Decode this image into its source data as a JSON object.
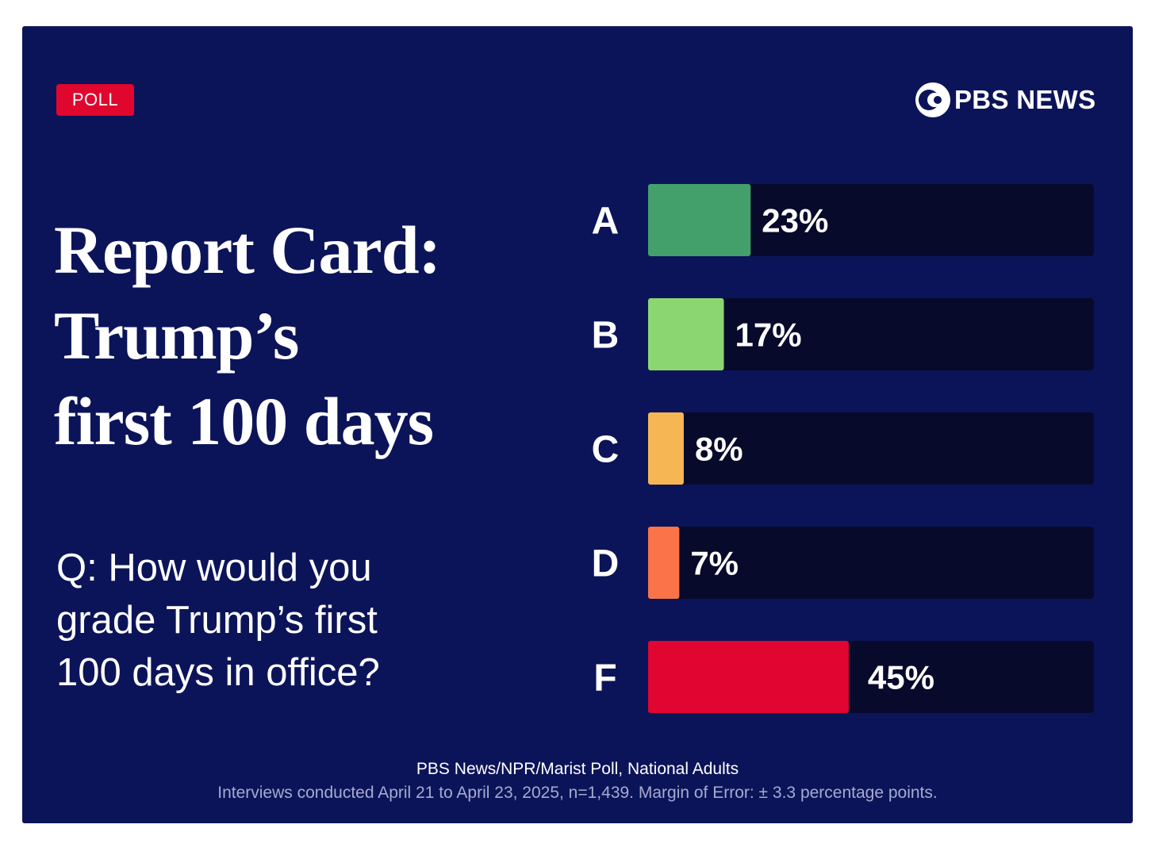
{
  "badge": "POLL",
  "brand": {
    "name": "PBS NEWS",
    "icon": "pbs-head-logo-icon"
  },
  "title_lines": [
    "Report Card:",
    "Trump’s",
    "first 100 days"
  ],
  "question_lines": [
    "Q: How would you",
    "grade Trump’s first",
    "100 days in office?"
  ],
  "footer": {
    "source": "PBS News/NPR/Marist Poll, National Adults",
    "note": "Interviews conducted April 21 to April 23, 2025, n=1,439. Margin of Error: ± 3.3 percentage points."
  },
  "colors": {
    "background": "#0c1459",
    "track": "#070a2b",
    "badge": "#e0062e"
  },
  "chart_data": {
    "type": "bar",
    "orientation": "horizontal",
    "categories": [
      "A",
      "B",
      "C",
      "D",
      "F"
    ],
    "values": [
      23,
      17,
      8,
      7,
      45
    ],
    "labels": [
      "23%",
      "17%",
      "8%",
      "7%",
      "45%"
    ],
    "colors": [
      "#43a06b",
      "#8cd672",
      "#f6b653",
      "#fb7449",
      "#e10531"
    ],
    "xlim": [
      0,
      100
    ],
    "grid": false,
    "legend": "none"
  }
}
